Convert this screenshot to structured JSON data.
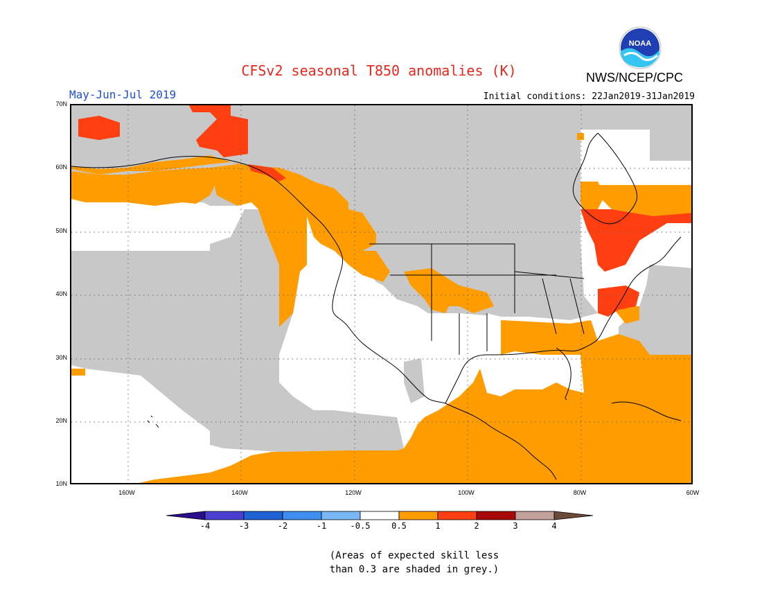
{
  "header": {
    "title": "CFSv2 seasonal T850 anomalies (K)",
    "agency": "NWS/NCEP/CPC",
    "logo_text": "NOAA",
    "period": "May-Jun-Jul 2019",
    "initial_conditions": "Initial conditions: 22Jan2019-31Jan2019"
  },
  "map": {
    "lat_labels": [
      "70N",
      "60N",
      "50N",
      "40N",
      "30N",
      "20N",
      "10N"
    ],
    "lon_labels": [
      "160W",
      "140W",
      "120W",
      "100W",
      "80W",
      "60W"
    ],
    "extent": {
      "lon_min": -170,
      "lon_max": -60,
      "lat_min": 10,
      "lat_max": 70
    },
    "gridlines": true
  },
  "colorbar": {
    "labels": [
      "-4",
      "-3",
      "-2",
      "-1",
      "-0.5",
      "0.5",
      "1",
      "2",
      "3",
      "4"
    ],
    "colors": [
      "#2a0f8c",
      "#4b3fd1",
      "#1f62d4",
      "#3e8ef0",
      "#7ab8f5",
      "#ffffff",
      "#ff9c00",
      "#ff3f10",
      "#a80808",
      "#c4a09a",
      "#6b4a3a"
    ]
  },
  "legend_colors": {
    "grey": "#c8c8c8",
    "light_orange": "#ff9c00",
    "red_orange": "#ff3f10",
    "white": "#ffffff"
  },
  "note": {
    "line1": "(Areas of expected skill less",
    "line2": "than 0.3 are shaded in grey.)"
  }
}
